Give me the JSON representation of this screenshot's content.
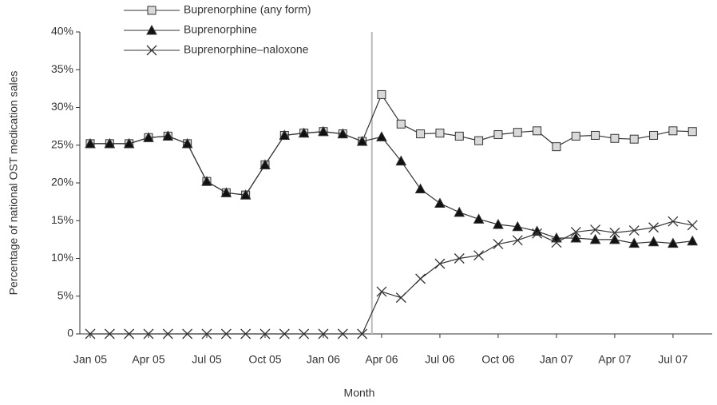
{
  "chart_data": {
    "type": "line",
    "x_label": "Month",
    "y_label": "Percentage of national OST medication sales",
    "categories": [
      "Jan 05",
      null,
      null,
      "Apr 05",
      null,
      null,
      "Jul 05",
      null,
      null,
      "Oct 05",
      null,
      null,
      "Jan 06",
      null,
      null,
      "Apr 06",
      null,
      null,
      "Jul 06",
      null,
      null,
      "Oct 06",
      null,
      null,
      "Jan 07",
      null,
      null,
      "Apr 07",
      null,
      null,
      "Jul 07",
      null
    ],
    "series": [
      {
        "name": "Buprenorphine (any form)",
        "color": "#333333",
        "marker": "square",
        "marker_fill": "#d9d9d9",
        "values": [
          25.2,
          25.2,
          25.2,
          26.0,
          26.2,
          25.2,
          20.2,
          18.7,
          18.4,
          22.4,
          26.3,
          26.6,
          26.8,
          26.5,
          25.5,
          31.7,
          27.8,
          26.5,
          26.6,
          26.2,
          25.6,
          26.4,
          26.7,
          26.9,
          24.8,
          26.2,
          26.3,
          25.9,
          25.8,
          26.3,
          26.9,
          26.8
        ]
      },
      {
        "name": "Buprenorphine",
        "color": "#333333",
        "marker": "triangle",
        "marker_fill": "#111111",
        "values": [
          25.2,
          25.2,
          25.2,
          26.0,
          26.2,
          25.2,
          20.2,
          18.7,
          18.4,
          22.4,
          26.3,
          26.6,
          26.8,
          26.5,
          25.5,
          26.1,
          22.9,
          19.2,
          17.3,
          16.1,
          15.2,
          14.5,
          14.2,
          13.6,
          12.7,
          12.7,
          12.5,
          12.5,
          12.0,
          12.2,
          12.0,
          12.3
        ]
      },
      {
        "name": "Buprenorphine–naloxone",
        "color": "#333333",
        "marker": "x",
        "marker_fill": "none",
        "values": [
          0,
          0,
          0,
          0,
          0,
          0,
          0,
          0,
          0,
          0,
          0,
          0,
          0,
          0,
          0,
          5.6,
          4.8,
          7.3,
          9.3,
          10.0,
          10.4,
          11.9,
          12.4,
          13.3,
          12.1,
          13.5,
          13.8,
          13.4,
          13.7,
          14.1,
          14.9,
          14.4
        ]
      }
    ],
    "ylim": [
      0,
      40
    ],
    "yticks": [
      0,
      {
        "value": 5,
        "label": "5%"
      },
      {
        "value": 10,
        "label": "10%"
      },
      {
        "value": 15,
        "label": "15%"
      },
      {
        "value": 20,
        "label": "20%"
      },
      {
        "value": 25,
        "label": "25%"
      },
      {
        "value": 30,
        "label": "30%"
      },
      {
        "value": 35,
        "label": "35%"
      },
      {
        "value": 40,
        "label": "40%"
      }
    ],
    "grid": false,
    "legend": "top-left"
  }
}
